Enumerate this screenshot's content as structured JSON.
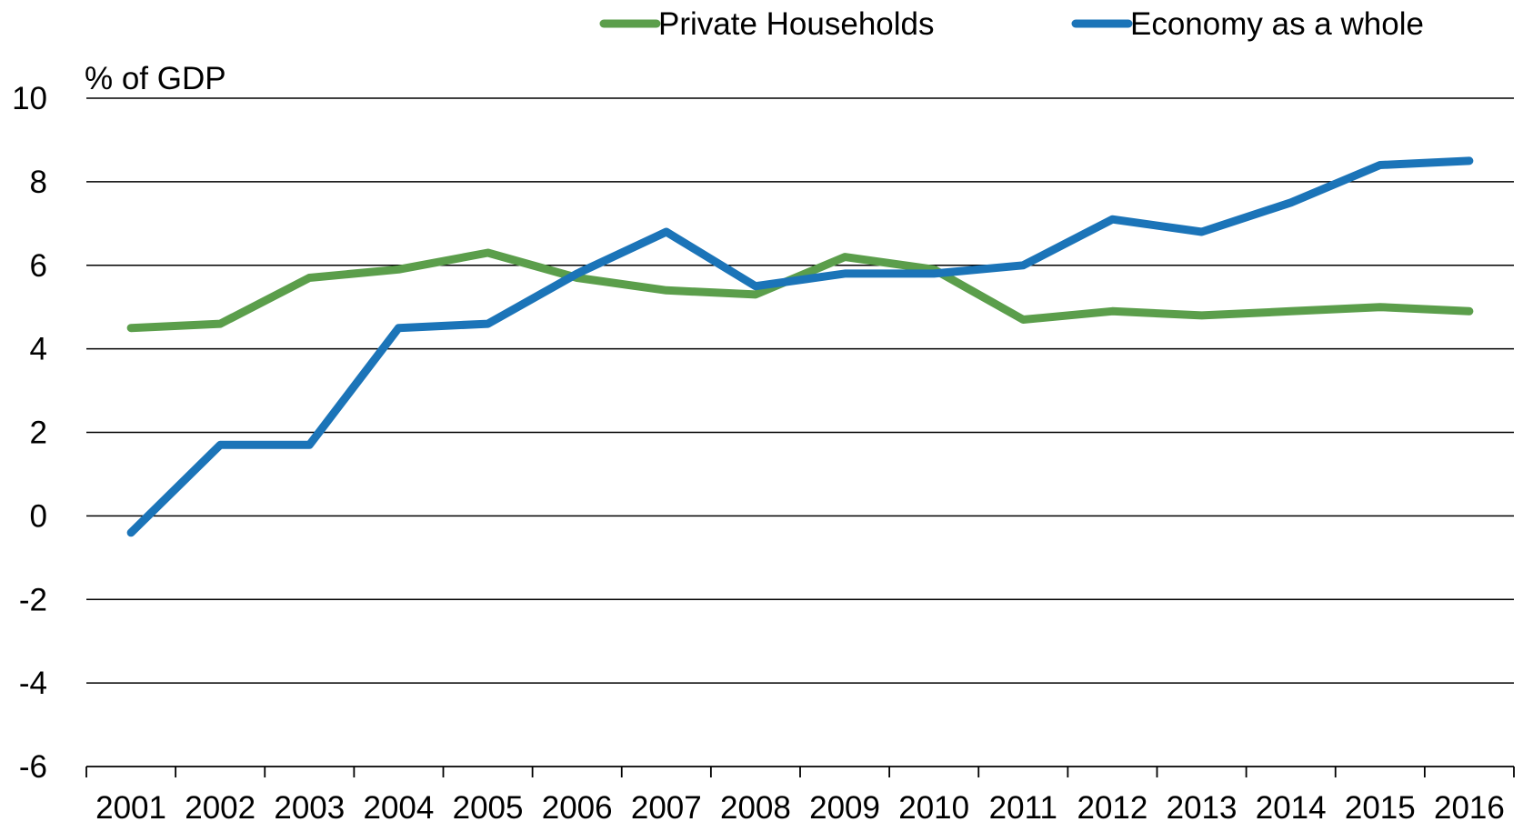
{
  "chart_data": {
    "type": "line",
    "ylabel": "% of GDP",
    "xlabel": "",
    "ylim": [
      -6,
      10
    ],
    "yticks": [
      -6,
      -4,
      -2,
      0,
      2,
      4,
      6,
      8,
      10
    ],
    "grid": true,
    "legend_position": "top",
    "categories": [
      "2001",
      "2002",
      "2003",
      "2004",
      "2005",
      "2006",
      "2007",
      "2008",
      "2009",
      "2010",
      "2011",
      "2012",
      "2013",
      "2014",
      "2015",
      "2016"
    ],
    "series": [
      {
        "name": "Private Households",
        "color": "#5b9e4b",
        "values": [
          4.5,
          4.6,
          5.7,
          5.9,
          6.3,
          5.7,
          5.4,
          5.3,
          6.2,
          5.9,
          4.7,
          4.9,
          4.8,
          4.9,
          5.0,
          4.9
        ]
      },
      {
        "name": "Economy as a whole",
        "color": "#1b74b8",
        "values": [
          -0.4,
          1.7,
          1.7,
          4.5,
          4.6,
          5.8,
          6.8,
          5.5,
          5.8,
          5.8,
          6.0,
          7.1,
          6.8,
          7.5,
          8.4,
          8.5
        ]
      }
    ]
  }
}
